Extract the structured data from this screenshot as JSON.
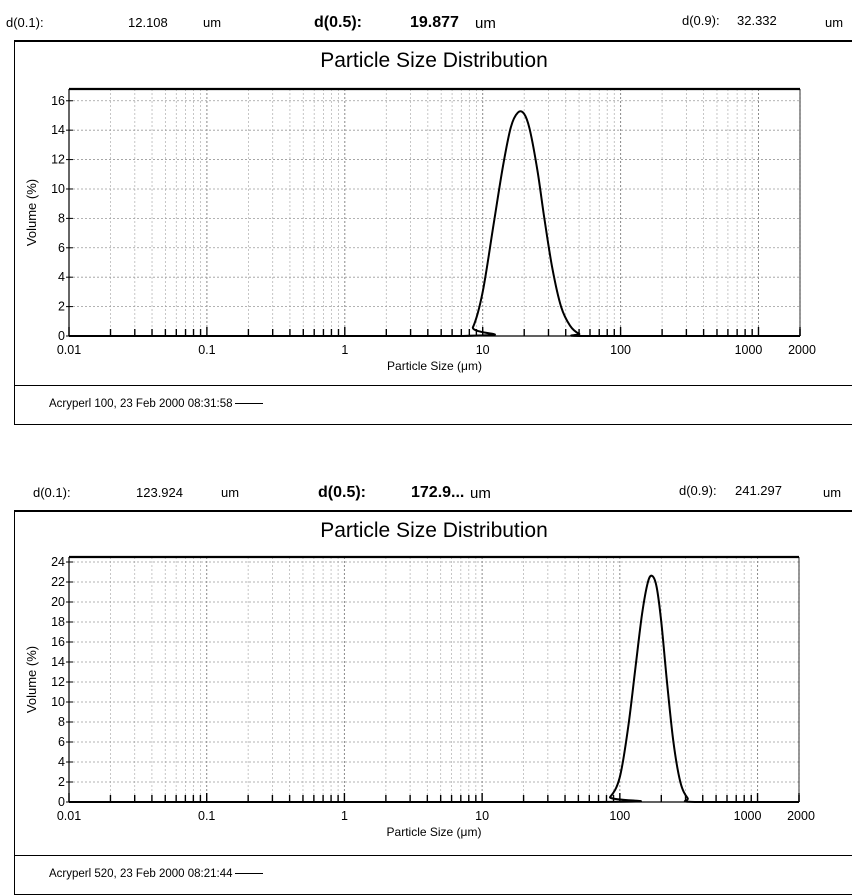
{
  "reports": [
    {
      "header": {
        "d01_label": "d(0.1):",
        "d01_value": "12.108",
        "d01_unit": "um",
        "d05_label": "d(0.5):",
        "d05_value": "19.877",
        "d05_unit": "um",
        "d09_label": "d(0.9):",
        "d09_value": "32.332",
        "d09_unit": "um"
      },
      "footer": {
        "legend_text": "Acryperl 100, 23 Feb 2000 08:31:58"
      },
      "chart_data": {
        "type": "line",
        "title": "Particle Size Distribution",
        "xlabel": "Particle Size (μm)",
        "ylabel": "Volume (%)",
        "xscale": "log",
        "xlim": [
          0.01,
          2000
        ],
        "ylim": [
          0,
          16.8
        ],
        "xticks": [
          "0.01",
          "0.1",
          "1",
          "10",
          "100",
          "1000",
          "2000"
        ],
        "yticks": [
          "0",
          "2",
          "4",
          "6",
          "8",
          "10",
          "12",
          "14",
          "16"
        ],
        "grid": true,
        "series": [
          {
            "name": "Acryperl 100, 23 Feb 2000 08:31:58",
            "x": [
              0.01,
              7.2,
              8.5,
              10,
              12,
              14,
              16,
              18,
              20,
              22,
              25,
              28,
              32,
              37,
              43,
              50,
              60,
              2000
            ],
            "y": [
              0,
              0,
              0.6,
              3.0,
              7.6,
              11.5,
              14.2,
              15.2,
              15.1,
              14.0,
              11.2,
              8.0,
              4.6,
              2.0,
              0.7,
              0.15,
              0,
              0
            ]
          }
        ]
      }
    },
    {
      "header": {
        "d01_label": "d(0.1):",
        "d01_value": "123.924",
        "d01_unit": "um",
        "d05_label": "d(0.5):",
        "d05_value": "172.9...",
        "d05_unit": "um",
        "d09_label": "d(0.9):",
        "d09_value": "241.297",
        "d09_unit": "um"
      },
      "footer": {
        "legend_text": "Acryperl 520, 23 Feb 2000 08:21:44"
      },
      "chart_data": {
        "type": "line",
        "title": "Particle Size Distribution",
        "xlabel": "Particle Size (μm)",
        "ylabel": "Volume (%)",
        "xscale": "log",
        "xlim": [
          0.01,
          2000
        ],
        "ylim": [
          0,
          24.5
        ],
        "xticks": [
          "0.01",
          "0.1",
          "1",
          "10",
          "100",
          "1000",
          "2000"
        ],
        "yticks": [
          "0",
          "2",
          "4",
          "6",
          "8",
          "10",
          "12",
          "14",
          "16",
          "18",
          "20",
          "22",
          "24"
        ],
        "grid": true,
        "series": [
          {
            "name": "Acryperl 520, 23 Feb 2000 08:21:44",
            "x": [
              0.01,
              70,
              85,
              100,
              115,
              130,
              145,
              160,
              172,
              185,
              200,
              220,
              245,
              275,
              310,
              350,
              2000
            ],
            "y": [
              0,
              0,
              0.5,
              2.5,
              7.5,
              13.5,
              18.8,
              22.0,
              22.6,
              21.5,
              18.0,
              12.0,
              6.0,
              2.0,
              0.4,
              0,
              0
            ]
          }
        ]
      }
    }
  ]
}
